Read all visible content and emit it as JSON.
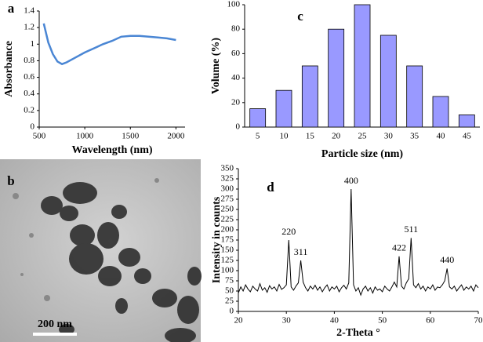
{
  "chart_data": [
    {
      "type": "line",
      "label": "a",
      "x_label": "Wavelength (nm)",
      "y_label": "Absorbance",
      "x": [
        550,
        600,
        650,
        700,
        750,
        800,
        900,
        1000,
        1100,
        1200,
        1300,
        1400,
        1500,
        1600,
        1700,
        1800,
        1900,
        2000
      ],
      "values": [
        1.25,
        1.02,
        0.88,
        0.79,
        0.76,
        0.78,
        0.84,
        0.9,
        0.95,
        1.0,
        1.04,
        1.09,
        1.1,
        1.1,
        1.09,
        1.08,
        1.07,
        1.05
      ],
      "color": "#4a86d4",
      "xlim": [
        500,
        2100
      ],
      "xticks": [
        500,
        1000,
        1500,
        2000
      ],
      "ylim": [
        0,
        1.4
      ],
      "yticks": [
        0,
        0.2,
        0.4,
        0.6,
        0.8,
        1,
        1.2,
        1.4
      ]
    },
    {
      "type": "bar",
      "label": "c",
      "x_label": "Particle size (nm)",
      "y_label": "Volume (%)",
      "categories": [
        "5",
        "10",
        "15",
        "20",
        "25",
        "30",
        "35",
        "40",
        "45"
      ],
      "values": [
        15,
        30,
        50,
        80,
        100,
        75,
        50,
        25,
        10
      ],
      "color": "#9999ff",
      "ylim": [
        0,
        100
      ],
      "yticks": [
        0,
        20,
        40,
        60,
        80,
        100
      ]
    },
    {
      "type": "image",
      "label": "b",
      "scale_bar": "200 nm"
    },
    {
      "type": "line",
      "label": "d",
      "x_label": "2-Theta °",
      "y_label": "Intensity in counts",
      "color": "#000000",
      "x": [
        20,
        20.5,
        21,
        21.5,
        22,
        22.5,
        23,
        23.5,
        24,
        24.5,
        25,
        25.5,
        26,
        26.5,
        27,
        27.5,
        28,
        28.5,
        29,
        29.5,
        30,
        30.5,
        31,
        31.5,
        32,
        32.5,
        33,
        33.5,
        34,
        34.5,
        35,
        35.5,
        36,
        36.5,
        37,
        37.5,
        38,
        38.5,
        39,
        39.5,
        40,
        40.5,
        41,
        41.5,
        42,
        42.5,
        43,
        43.5,
        44,
        44.5,
        45,
        45.5,
        46,
        46.5,
        47,
        47.5,
        48,
        48.5,
        49,
        49.5,
        50,
        50.5,
        51,
        51.5,
        52,
        52.5,
        53,
        53.5,
        54,
        54.5,
        55,
        55.5,
        56,
        56.5,
        57,
        57.5,
        58,
        58.5,
        59,
        59.5,
        60,
        60.5,
        61,
        61.5,
        62,
        62.5,
        63,
        63.5,
        64,
        64.5,
        65,
        65.5,
        66,
        66.5,
        67,
        67.5,
        68,
        68.5,
        69,
        69.5,
        70
      ],
      "values": [
        45,
        60,
        50,
        65,
        55,
        48,
        62,
        55,
        50,
        68,
        52,
        58,
        47,
        63,
        55,
        60,
        50,
        66,
        54,
        58,
        65,
        175,
        60,
        52,
        62,
        70,
        125,
        72,
        58,
        50,
        62,
        55,
        64,
        52,
        60,
        48,
        58,
        65,
        50,
        60,
        55,
        62,
        48,
        58,
        64,
        55,
        70,
        300,
        65,
        50,
        58,
        40,
        55,
        62,
        50,
        58,
        45,
        60,
        52,
        55,
        48,
        62,
        55,
        50,
        60,
        72,
        60,
        135,
        62,
        55,
        70,
        80,
        180,
        65,
        58,
        68,
        55,
        62,
        50,
        60,
        55,
        65,
        52,
        60,
        58,
        65,
        75,
        105,
        60,
        55,
        62,
        50,
        58,
        65,
        52,
        60,
        55,
        62,
        50,
        65,
        58
      ],
      "annotations": [
        {
          "text": "220",
          "x": 30.5
        },
        {
          "text": "311",
          "x": 33
        },
        {
          "text": "400",
          "x": 43.5
        },
        {
          "text": "422",
          "x": 53.5
        },
        {
          "text": "511",
          "x": 56
        },
        {
          "text": "440",
          "x": 63.5
        }
      ],
      "xlim": [
        20,
        70
      ],
      "xticks": [
        20,
        30,
        40,
        50,
        60,
        70
      ],
      "ylim": [
        0,
        350
      ],
      "yticks": [
        0,
        25,
        50,
        75,
        100,
        125,
        150,
        175,
        200,
        225,
        250,
        275,
        300,
        325,
        350
      ]
    }
  ]
}
